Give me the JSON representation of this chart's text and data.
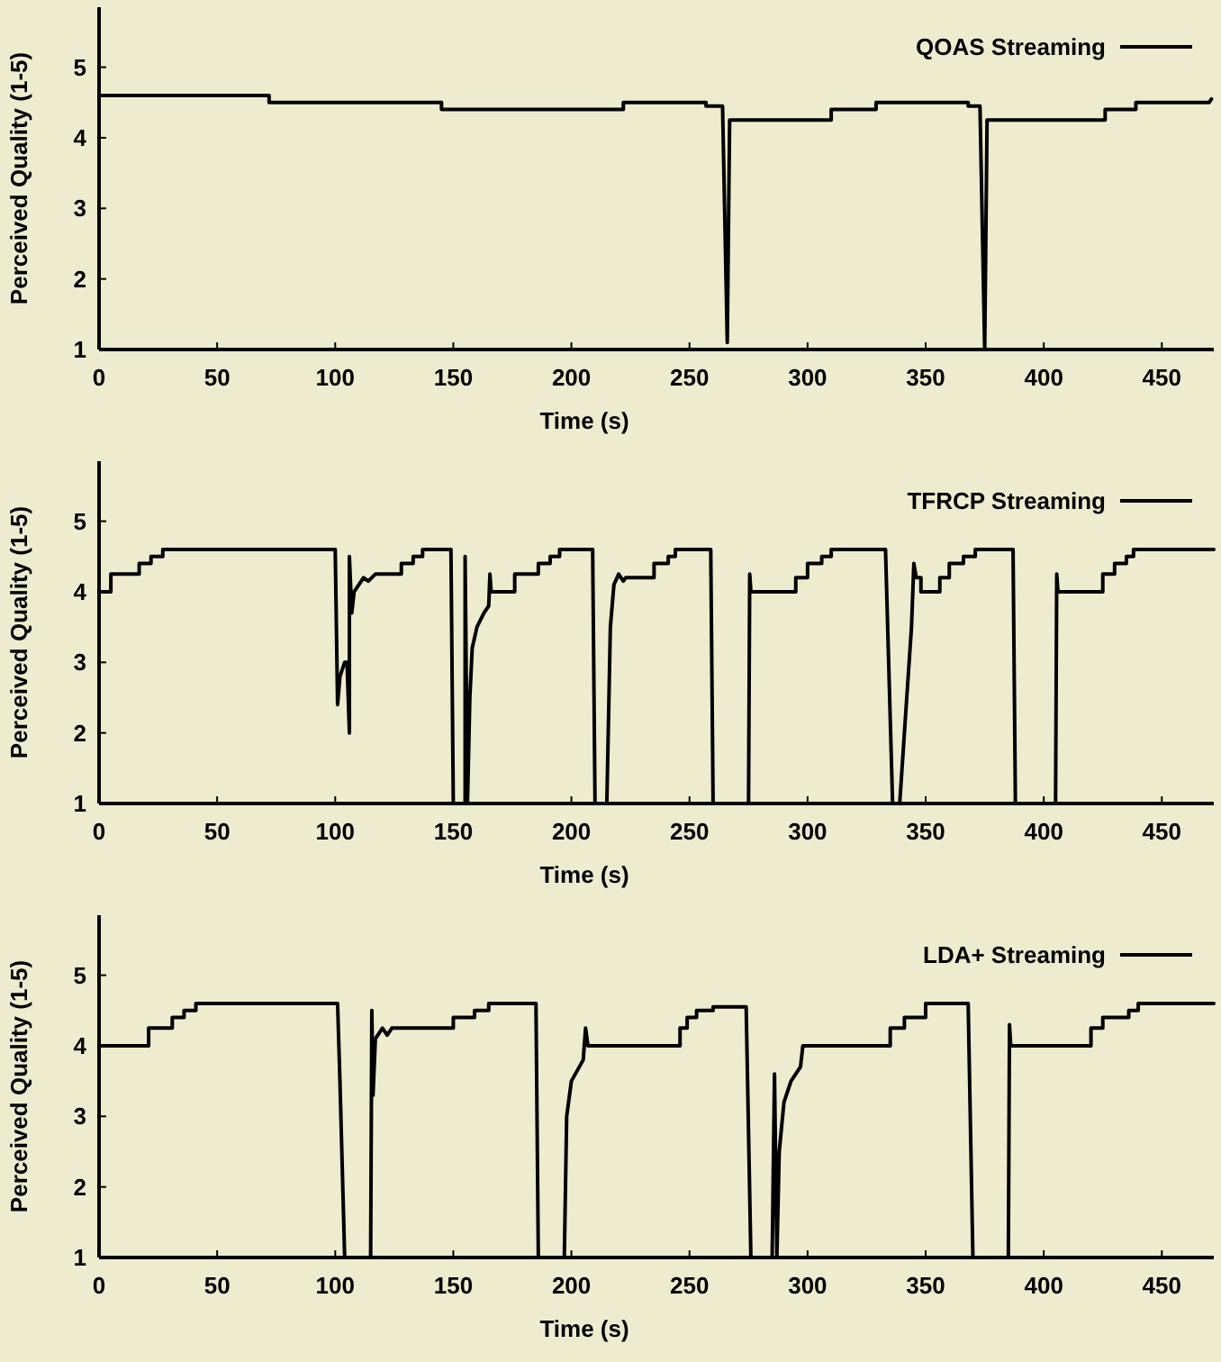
{
  "chart_data": [
    {
      "type": "line",
      "xlabel": "Time (s)",
      "ylabel": "Perceived Quality (1-5)",
      "xlim": [
        0,
        472
      ],
      "ylim": [
        1,
        5.85
      ],
      "xticks": [
        0,
        50,
        100,
        150,
        200,
        250,
        300,
        350,
        400,
        450
      ],
      "yticks": [
        1,
        2,
        3,
        4,
        5
      ],
      "grid": false,
      "legend": "top right",
      "marker": "none",
      "line_style": "solid",
      "series": [
        {
          "name": "QOAS Streaming",
          "color": "#000000",
          "x": [
            0,
            72,
            72,
            145,
            145,
            222,
            222,
            257,
            257,
            264,
            266,
            267,
            310,
            310,
            329,
            329,
            368,
            368,
            373,
            375,
            376,
            426,
            426,
            439,
            439,
            470,
            471
          ],
          "values": [
            4.6,
            4.6,
            4.5,
            4.5,
            4.4,
            4.4,
            4.5,
            4.5,
            4.45,
            4.45,
            1.1,
            4.25,
            4.25,
            4.4,
            4.4,
            4.5,
            4.5,
            4.45,
            4.45,
            1,
            4.25,
            4.25,
            4.4,
            4.4,
            4.5,
            4.5,
            4.55
          ]
        }
      ]
    },
    {
      "type": "line",
      "xlabel": "Time (s)",
      "ylabel": "Perceived Quality (1-5)",
      "xlim": [
        0,
        472
      ],
      "ylim": [
        1,
        5.85
      ],
      "xticks": [
        0,
        50,
        100,
        150,
        200,
        250,
        300,
        350,
        400,
        450
      ],
      "yticks": [
        1,
        2,
        3,
        4,
        5
      ],
      "grid": false,
      "legend": "top right",
      "marker": "none",
      "line_style": "solid",
      "series": [
        {
          "name": "TFRCP Streaming",
          "color": "#000000",
          "x": [
            0,
            5,
            5,
            17,
            17,
            22,
            22,
            27,
            27,
            100,
            101,
            102,
            104,
            105,
            106,
            106,
            107,
            108,
            112,
            114,
            117,
            128,
            128,
            133,
            133,
            137,
            137,
            149,
            150,
            155,
            155,
            156,
            157,
            158,
            160,
            163,
            165,
            165.5,
            166,
            176,
            176,
            186,
            186,
            191,
            191,
            195,
            195,
            209,
            210,
            215,
            216.5,
            218,
            220,
            222,
            223,
            235,
            235,
            241,
            241,
            244,
            244,
            259,
            260,
            275,
            275.5,
            276,
            295,
            295,
            300,
            300,
            306,
            306,
            310,
            310,
            333,
            336,
            339,
            344,
            345,
            346,
            348,
            348,
            356,
            356,
            360,
            360,
            366,
            366,
            371,
            371,
            387,
            388,
            405,
            405.5,
            406,
            425,
            425,
            430,
            430,
            435,
            435,
            438,
            438,
            472
          ],
          "values": [
            4,
            4,
            4.25,
            4.25,
            4.4,
            4.4,
            4.5,
            4.5,
            4.6,
            4.6,
            2.4,
            2.8,
            3,
            3,
            2,
            4.5,
            3.7,
            4,
            4.2,
            4.15,
            4.25,
            4.25,
            4.4,
            4.4,
            4.5,
            4.5,
            4.6,
            4.6,
            1,
            1,
            4.5,
            1,
            2.5,
            3.2,
            3.5,
            3.7,
            3.8,
            4.25,
            4,
            4,
            4.25,
            4.25,
            4.4,
            4.4,
            4.5,
            4.5,
            4.6,
            4.6,
            1,
            1,
            3.5,
            4.1,
            4.25,
            4.15,
            4.2,
            4.2,
            4.4,
            4.4,
            4.5,
            4.5,
            4.6,
            4.6,
            1,
            1,
            4.25,
            4,
            4,
            4.2,
            4.2,
            4.4,
            4.4,
            4.5,
            4.5,
            4.6,
            4.6,
            1,
            1,
            3.5,
            4.4,
            4.2,
            4.2,
            4,
            4,
            4.2,
            4.2,
            4.4,
            4.4,
            4.5,
            4.5,
            4.6,
            4.6,
            1,
            1,
            4.25,
            4,
            4,
            4.25,
            4.25,
            4.4,
            4.4,
            4.5,
            4.5,
            4.6,
            4.6
          ]
        }
      ]
    },
    {
      "type": "line",
      "xlabel": "Time (s)",
      "ylabel": "Perceived Quality (1-5)",
      "xlim": [
        0,
        472
      ],
      "ylim": [
        1,
        5.85
      ],
      "xticks": [
        0,
        50,
        100,
        150,
        200,
        250,
        300,
        350,
        400,
        450
      ],
      "yticks": [
        1,
        2,
        3,
        4,
        5
      ],
      "grid": false,
      "legend": "top right",
      "marker": "none",
      "line_style": "solid",
      "series": [
        {
          "name": "LDA+ Streaming",
          "color": "#000000",
          "x": [
            0,
            21,
            21,
            31,
            31,
            36,
            36,
            41,
            41,
            101,
            102,
            104,
            115,
            115.5,
            116,
            117,
            120,
            122,
            124,
            150,
            150,
            159,
            159,
            165,
            165,
            185,
            186,
            197,
            198,
            200,
            205,
            206,
            207,
            246,
            246,
            249,
            249,
            253,
            253,
            260,
            260,
            274,
            276,
            285,
            286,
            287,
            288,
            290,
            293,
            297,
            298,
            335,
            335,
            341,
            341,
            350,
            350,
            368,
            370,
            385,
            385.5,
            386,
            420,
            420,
            425,
            425,
            436,
            436,
            440,
            440,
            472
          ],
          "values": [
            4,
            4,
            4.25,
            4.25,
            4.4,
            4.4,
            4.5,
            4.5,
            4.6,
            4.6,
            3.5,
            1,
            1,
            4.5,
            3.3,
            4.1,
            4.25,
            4.15,
            4.25,
            4.25,
            4.4,
            4.4,
            4.5,
            4.5,
            4.6,
            4.6,
            1,
            1,
            3,
            3.5,
            3.8,
            4.25,
            4,
            4,
            4.25,
            4.25,
            4.4,
            4.4,
            4.5,
            4.5,
            4.55,
            4.55,
            1,
            1,
            3.6,
            1,
            2.5,
            3.2,
            3.5,
            3.7,
            4,
            4,
            4.25,
            4.25,
            4.4,
            4.4,
            4.6,
            4.6,
            1,
            1,
            4.3,
            4,
            4,
            4.25,
            4.25,
            4.4,
            4.4,
            4.5,
            4.5,
            4.6,
            4.6
          ]
        }
      ]
    }
  ]
}
